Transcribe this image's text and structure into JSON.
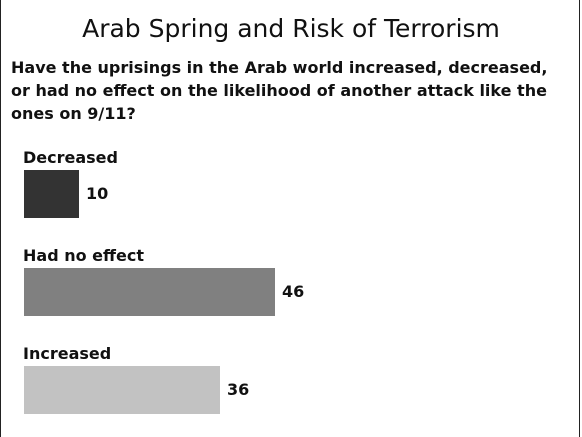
{
  "chart_data": {
    "type": "bar",
    "orientation": "horizontal",
    "title": "Arab Spring and Risk of Terrorism",
    "subtitle": "Have the uprisings in the Arab world increased, decreased, or had no effect on the likelihood of another attack like the ones on 9/11?",
    "categories": [
      "Decreased",
      "Had no effect",
      "Increased"
    ],
    "values": [
      10,
      46,
      36
    ],
    "colors": [
      "#333333",
      "#808080",
      "#c2c2c2"
    ],
    "grid": false,
    "legend": "none"
  }
}
